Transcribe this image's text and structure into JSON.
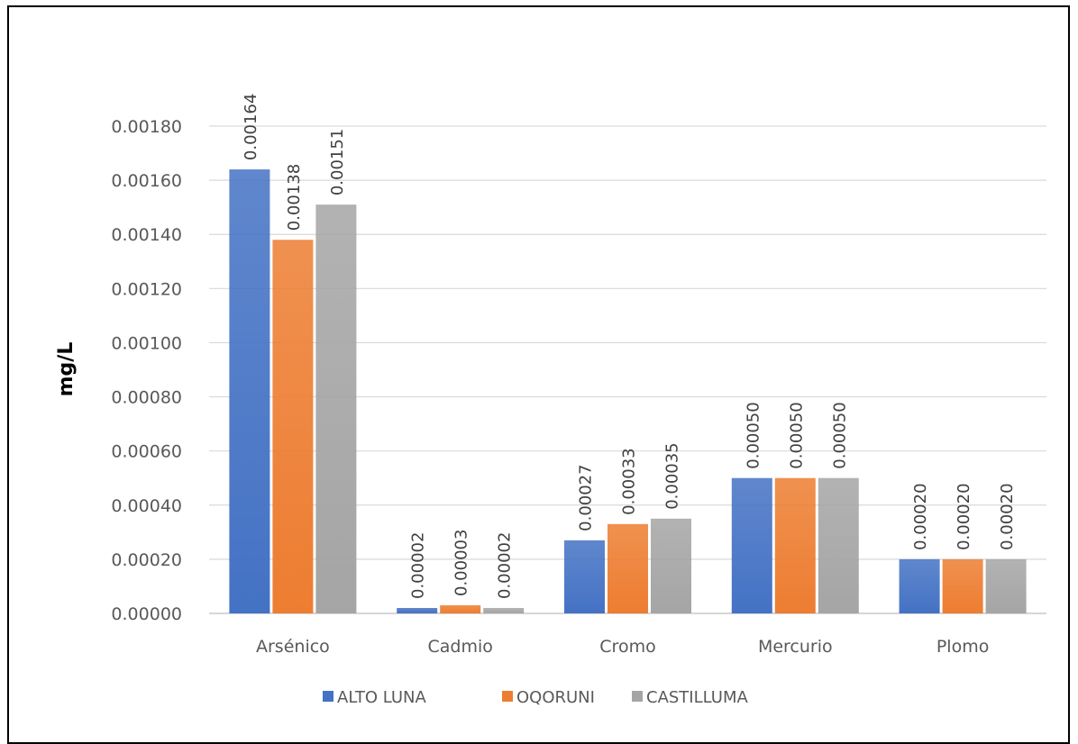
{
  "chart_data": {
    "type": "bar",
    "title": "",
    "xlabel": "",
    "ylabel": "mg/L",
    "ylim": [
      0,
      0.0018
    ],
    "yticks": [
      "0.00000",
      "0.00020",
      "0.00040",
      "0.00060",
      "0.00080",
      "0.00100",
      "0.00120",
      "0.00140",
      "0.00160",
      "0.00180"
    ],
    "grid": true,
    "legend": "bottom",
    "categories": [
      "Arsénico",
      "Cadmio",
      "Cromo",
      "Mercurio",
      "Plomo"
    ],
    "series": [
      {
        "name": "ALTO LUNA",
        "color": "#4472C4",
        "values": [
          0.00164,
          2e-05,
          0.00027,
          0.0005,
          0.0002
        ],
        "labels": [
          "0.00164",
          "0.00002",
          "0.00027",
          "0.00050",
          "0.00020"
        ]
      },
      {
        "name": "OQORUNI",
        "color": "#ED7D31",
        "values": [
          0.00138,
          3e-05,
          0.00033,
          0.0005,
          0.0002
        ],
        "labels": [
          "0.00138",
          "0.00003",
          "0.00033",
          "0.00050",
          "0.00020"
        ]
      },
      {
        "name": "CASTILLUMA",
        "color": "#A5A5A5",
        "values": [
          0.00151,
          2e-05,
          0.00035,
          0.0005,
          0.0002
        ],
        "labels": [
          "0.00151",
          "0.00002",
          "0.00035",
          "0.00050",
          "0.00020"
        ]
      }
    ]
  }
}
